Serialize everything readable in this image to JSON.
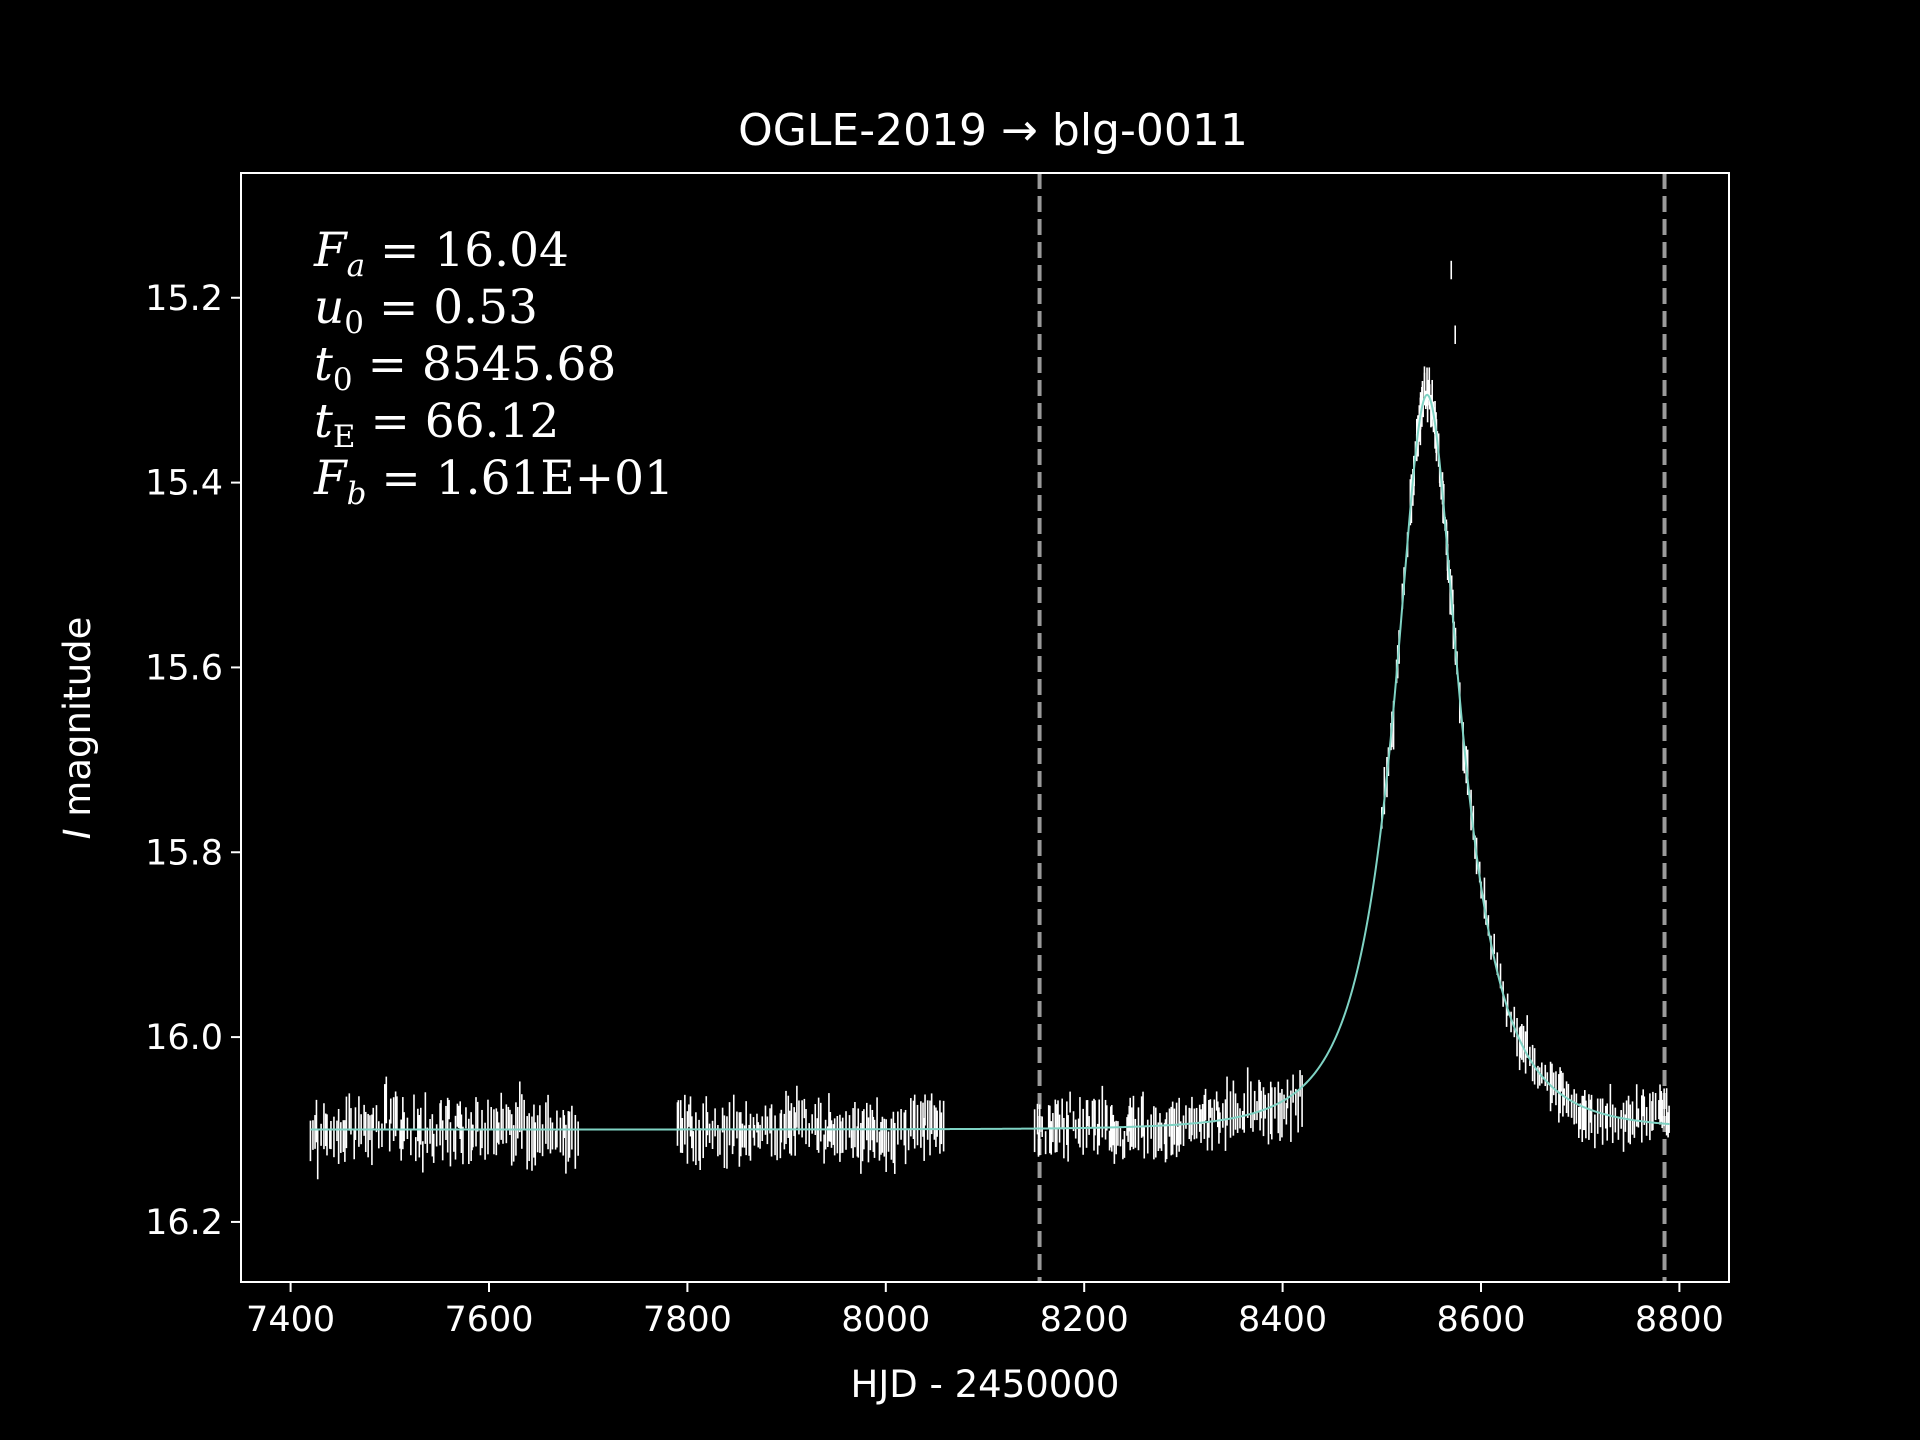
{
  "chart_data": {
    "type": "scatter",
    "title": "OGLE-2019 → blg-0011",
    "xlabel": "HJD - 2450000",
    "ylabel_italic": "I",
    "ylabel_rest": " magnitude",
    "xlim": [
      7350,
      8850
    ],
    "ylim": [
      16.265,
      15.065
    ],
    "y_inverted": true,
    "xticks": [
      7400,
      7600,
      7800,
      8000,
      8200,
      8400,
      8600,
      8800
    ],
    "yticks": [
      15.2,
      15.4,
      15.6,
      15.8,
      16.0,
      16.2
    ],
    "yticks_text": [
      "15.2",
      "15.4",
      "15.6",
      "15.8",
      "16.0",
      "16.2"
    ],
    "grid": false,
    "colors": {
      "background": "#000000",
      "data": "#ffffff",
      "model": "#7fd3c4",
      "vlines": "#9a9a9a"
    },
    "vlines": [
      8155,
      8785
    ],
    "vline_style": "dashed",
    "parameters": {
      "Fa": "16.04",
      "u0": "0.53",
      "t0": "8545.68",
      "tE": "66.12",
      "Fb": "1.61E+01"
    },
    "model": {
      "baseline": 16.1,
      "peak_mag": 15.305,
      "t0": 8545.68,
      "tE": 66.12,
      "u0": 0.53,
      "x_range": [
        7420,
        8790
      ]
    },
    "data_segments": [
      {
        "x_range": [
          7420,
          7690
        ],
        "mag": 16.1,
        "scatter": 0.022,
        "err": 0.02
      },
      {
        "x_range": [
          7790,
          8060
        ],
        "mag": 16.1,
        "scatter": 0.018,
        "err": 0.02
      },
      {
        "x_range": [
          8150,
          8420
        ],
        "mag": "model",
        "scatter": 0.018,
        "err": 0.02
      },
      {
        "x_range": [
          8500,
          8790
        ],
        "mag": "model",
        "scatter": 0.015,
        "err": 0.018
      }
    ],
    "outliers": [
      {
        "x": 8570,
        "y": 15.17,
        "err": 0.01
      },
      {
        "x": 8574,
        "y": 15.24,
        "err": 0.01
      }
    ]
  }
}
